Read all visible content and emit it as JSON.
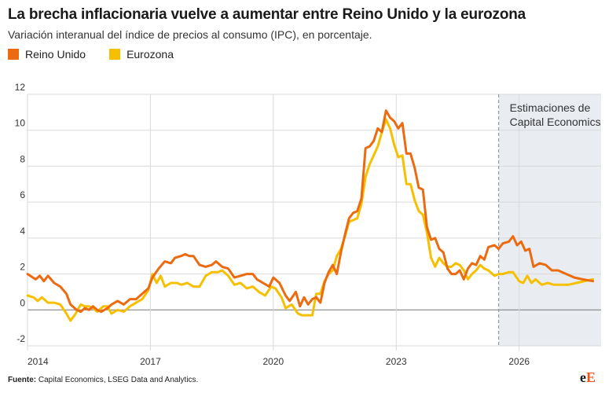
{
  "title": "La brecha inflacionaria vuelve a aumentar entre Reino Unido y la eurozona",
  "subtitle": "Variación interanual del índice de precios al consumo (IPC), en porcentaje.",
  "source_label": "Fuente:",
  "source_text": "Capital Economics, LSEG Data and Analytics.",
  "logo": {
    "part1": "e",
    "part2": "E"
  },
  "colors": {
    "uk": "#ec6a10",
    "ez": "#f6c000",
    "shade": "#e9edf2",
    "brand": "#e8571c"
  },
  "chart_data": {
    "type": "line",
    "ylim": [
      -2,
      12
    ],
    "xlim": [
      2014.0,
      2028.0
    ],
    "y_ticks": [
      -2,
      0,
      2,
      4,
      6,
      8,
      10,
      12
    ],
    "x_ticks": [
      {
        "value": 2014,
        "label": "2014"
      },
      {
        "value": 2017,
        "label": "2017"
      },
      {
        "value": 2020,
        "label": "2020"
      },
      {
        "value": 2023,
        "label": "2023"
      },
      {
        "value": 2026,
        "label": "2026"
      }
    ],
    "forecast_region": {
      "start": 2025.5,
      "label_line1": "Estimaciones de",
      "label_line2": "Capital Economics"
    },
    "series": [
      {
        "name": "Reino Unido",
        "key": "uk",
        "points": [
          [
            2014.0,
            2.0
          ],
          [
            2014.2,
            1.7
          ],
          [
            2014.3,
            1.9
          ],
          [
            2014.4,
            1.6
          ],
          [
            2014.5,
            1.9
          ],
          [
            2014.65,
            1.5
          ],
          [
            2014.8,
            1.3
          ],
          [
            2014.95,
            0.9
          ],
          [
            2015.05,
            0.3
          ],
          [
            2015.2,
            0.0
          ],
          [
            2015.3,
            -0.1
          ],
          [
            2015.4,
            0.1
          ],
          [
            2015.5,
            0.0
          ],
          [
            2015.6,
            0.2
          ],
          [
            2015.7,
            0.0
          ],
          [
            2015.8,
            -0.1
          ],
          [
            2015.95,
            0.1
          ],
          [
            2016.05,
            0.3
          ],
          [
            2016.2,
            0.5
          ],
          [
            2016.35,
            0.3
          ],
          [
            2016.5,
            0.6
          ],
          [
            2016.65,
            0.6
          ],
          [
            2016.8,
            0.9
          ],
          [
            2016.95,
            1.2
          ],
          [
            2017.05,
            1.8
          ],
          [
            2017.2,
            2.3
          ],
          [
            2017.35,
            2.7
          ],
          [
            2017.5,
            2.6
          ],
          [
            2017.6,
            2.9
          ],
          [
            2017.75,
            3.0
          ],
          [
            2017.85,
            3.1
          ],
          [
            2017.95,
            3.0
          ],
          [
            2018.05,
            3.0
          ],
          [
            2018.2,
            2.5
          ],
          [
            2018.35,
            2.4
          ],
          [
            2018.5,
            2.5
          ],
          [
            2018.6,
            2.7
          ],
          [
            2018.75,
            2.4
          ],
          [
            2018.9,
            2.3
          ],
          [
            2019.05,
            1.8
          ],
          [
            2019.2,
            1.9
          ],
          [
            2019.35,
            2.0
          ],
          [
            2019.5,
            2.0
          ],
          [
            2019.6,
            1.7
          ],
          [
            2019.75,
            1.5
          ],
          [
            2019.9,
            1.3
          ],
          [
            2020.0,
            1.8
          ],
          [
            2020.15,
            1.5
          ],
          [
            2020.3,
            0.8
          ],
          [
            2020.4,
            0.5
          ],
          [
            2020.55,
            1.0
          ],
          [
            2020.65,
            0.2
          ],
          [
            2020.75,
            0.7
          ],
          [
            2020.85,
            0.3
          ],
          [
            2020.95,
            0.6
          ],
          [
            2021.05,
            0.7
          ],
          [
            2021.15,
            0.4
          ],
          [
            2021.25,
            1.5
          ],
          [
            2021.35,
            2.1
          ],
          [
            2021.45,
            2.5
          ],
          [
            2021.55,
            2.0
          ],
          [
            2021.65,
            3.2
          ],
          [
            2021.75,
            4.2
          ],
          [
            2021.85,
            5.1
          ],
          [
            2021.95,
            5.4
          ],
          [
            2022.05,
            5.5
          ],
          [
            2022.15,
            6.2
          ],
          [
            2022.25,
            9.0
          ],
          [
            2022.35,
            9.1
          ],
          [
            2022.45,
            9.4
          ],
          [
            2022.55,
            10.1
          ],
          [
            2022.65,
            9.9
          ],
          [
            2022.75,
            11.1
          ],
          [
            2022.85,
            10.7
          ],
          [
            2022.95,
            10.5
          ],
          [
            2023.05,
            10.1
          ],
          [
            2023.15,
            10.4
          ],
          [
            2023.25,
            8.7
          ],
          [
            2023.35,
            8.7
          ],
          [
            2023.45,
            7.9
          ],
          [
            2023.55,
            6.8
          ],
          [
            2023.65,
            6.7
          ],
          [
            2023.75,
            4.6
          ],
          [
            2023.85,
            3.9
          ],
          [
            2023.95,
            4.0
          ],
          [
            2024.05,
            3.4
          ],
          [
            2024.15,
            3.2
          ],
          [
            2024.25,
            2.3
          ],
          [
            2024.35,
            2.0
          ],
          [
            2024.45,
            2.0
          ],
          [
            2024.55,
            2.2
          ],
          [
            2024.65,
            1.7
          ],
          [
            2024.75,
            2.3
          ],
          [
            2024.85,
            2.6
          ],
          [
            2024.95,
            2.5
          ],
          [
            2025.05,
            3.0
          ],
          [
            2025.15,
            2.8
          ],
          [
            2025.25,
            3.5
          ],
          [
            2025.4,
            3.6
          ],
          [
            2025.5,
            3.4
          ],
          [
            2025.6,
            3.7
          ],
          [
            2025.75,
            3.8
          ],
          [
            2025.85,
            4.1
          ],
          [
            2025.95,
            3.6
          ],
          [
            2026.05,
            3.8
          ],
          [
            2026.15,
            3.3
          ],
          [
            2026.25,
            3.4
          ],
          [
            2026.35,
            2.4
          ],
          [
            2026.5,
            2.6
          ],
          [
            2026.65,
            2.5
          ],
          [
            2026.8,
            2.2
          ],
          [
            2026.95,
            2.2
          ],
          [
            2027.15,
            2.0
          ],
          [
            2027.35,
            1.8
          ],
          [
            2027.55,
            1.7
          ],
          [
            2027.8,
            1.6
          ]
        ]
      },
      {
        "name": "Eurozona",
        "key": "ez",
        "points": [
          [
            2014.0,
            0.8
          ],
          [
            2014.15,
            0.7
          ],
          [
            2014.25,
            0.5
          ],
          [
            2014.35,
            0.7
          ],
          [
            2014.5,
            0.4
          ],
          [
            2014.65,
            0.4
          ],
          [
            2014.8,
            0.3
          ],
          [
            2014.95,
            -0.2
          ],
          [
            2015.05,
            -0.6
          ],
          [
            2015.15,
            -0.3
          ],
          [
            2015.3,
            0.3
          ],
          [
            2015.4,
            0.2
          ],
          [
            2015.5,
            0.2
          ],
          [
            2015.6,
            0.1
          ],
          [
            2015.7,
            -0.1
          ],
          [
            2015.85,
            0.2
          ],
          [
            2015.95,
            0.2
          ],
          [
            2016.05,
            -0.2
          ],
          [
            2016.2,
            0.0
          ],
          [
            2016.35,
            -0.1
          ],
          [
            2016.5,
            0.2
          ],
          [
            2016.65,
            0.4
          ],
          [
            2016.8,
            0.6
          ],
          [
            2016.95,
            1.1
          ],
          [
            2017.05,
            2.0
          ],
          [
            2017.15,
            1.5
          ],
          [
            2017.25,
            1.9
          ],
          [
            2017.35,
            1.3
          ],
          [
            2017.5,
            1.5
          ],
          [
            2017.65,
            1.5
          ],
          [
            2017.75,
            1.4
          ],
          [
            2017.9,
            1.5
          ],
          [
            2018.05,
            1.3
          ],
          [
            2018.2,
            1.3
          ],
          [
            2018.35,
            1.9
          ],
          [
            2018.5,
            2.1
          ],
          [
            2018.65,
            2.1
          ],
          [
            2018.75,
            2.2
          ],
          [
            2018.9,
            1.9
          ],
          [
            2019.05,
            1.4
          ],
          [
            2019.2,
            1.5
          ],
          [
            2019.35,
            1.2
          ],
          [
            2019.5,
            1.3
          ],
          [
            2019.65,
            1.0
          ],
          [
            2019.8,
            0.8
          ],
          [
            2019.95,
            1.3
          ],
          [
            2020.05,
            1.2
          ],
          [
            2020.2,
            0.7
          ],
          [
            2020.3,
            0.1
          ],
          [
            2020.45,
            0.3
          ],
          [
            2020.6,
            -0.2
          ],
          [
            2020.7,
            -0.3
          ],
          [
            2020.8,
            -0.3
          ],
          [
            2020.95,
            -0.3
          ],
          [
            2021.05,
            0.9
          ],
          [
            2021.15,
            0.9
          ],
          [
            2021.25,
            1.6
          ],
          [
            2021.35,
            2.0
          ],
          [
            2021.45,
            2.2
          ],
          [
            2021.55,
            3.0
          ],
          [
            2021.65,
            3.4
          ],
          [
            2021.75,
            4.1
          ],
          [
            2021.85,
            4.9
          ],
          [
            2021.95,
            5.0
          ],
          [
            2022.05,
            5.1
          ],
          [
            2022.15,
            5.9
          ],
          [
            2022.25,
            7.4
          ],
          [
            2022.35,
            8.1
          ],
          [
            2022.45,
            8.6
          ],
          [
            2022.55,
            9.1
          ],
          [
            2022.65,
            9.9
          ],
          [
            2022.75,
            10.6
          ],
          [
            2022.85,
            10.1
          ],
          [
            2022.95,
            9.2
          ],
          [
            2023.05,
            8.5
          ],
          [
            2023.15,
            8.6
          ],
          [
            2023.25,
            7.0
          ],
          [
            2023.35,
            7.0
          ],
          [
            2023.45,
            6.1
          ],
          [
            2023.55,
            5.5
          ],
          [
            2023.65,
            5.3
          ],
          [
            2023.75,
            4.3
          ],
          [
            2023.85,
            2.9
          ],
          [
            2023.95,
            2.4
          ],
          [
            2024.05,
            2.9
          ],
          [
            2024.15,
            2.6
          ],
          [
            2024.25,
            2.4
          ],
          [
            2024.35,
            2.4
          ],
          [
            2024.45,
            2.6
          ],
          [
            2024.55,
            2.5
          ],
          [
            2024.65,
            2.2
          ],
          [
            2024.75,
            1.7
          ],
          [
            2024.85,
            2.0
          ],
          [
            2024.95,
            2.2
          ],
          [
            2025.05,
            2.5
          ],
          [
            2025.15,
            2.3
          ],
          [
            2025.25,
            2.2
          ],
          [
            2025.4,
            1.9
          ],
          [
            2025.5,
            2.0
          ],
          [
            2025.6,
            2.0
          ],
          [
            2025.75,
            2.1
          ],
          [
            2025.85,
            2.1
          ],
          [
            2026.0,
            1.6
          ],
          [
            2026.1,
            1.5
          ],
          [
            2026.2,
            1.9
          ],
          [
            2026.3,
            1.5
          ],
          [
            2026.4,
            1.7
          ],
          [
            2026.55,
            1.4
          ],
          [
            2026.7,
            1.5
          ],
          [
            2026.85,
            1.4
          ],
          [
            2027.0,
            1.4
          ],
          [
            2027.2,
            1.4
          ],
          [
            2027.4,
            1.5
          ],
          [
            2027.6,
            1.6
          ],
          [
            2027.8,
            1.7
          ]
        ]
      }
    ]
  }
}
